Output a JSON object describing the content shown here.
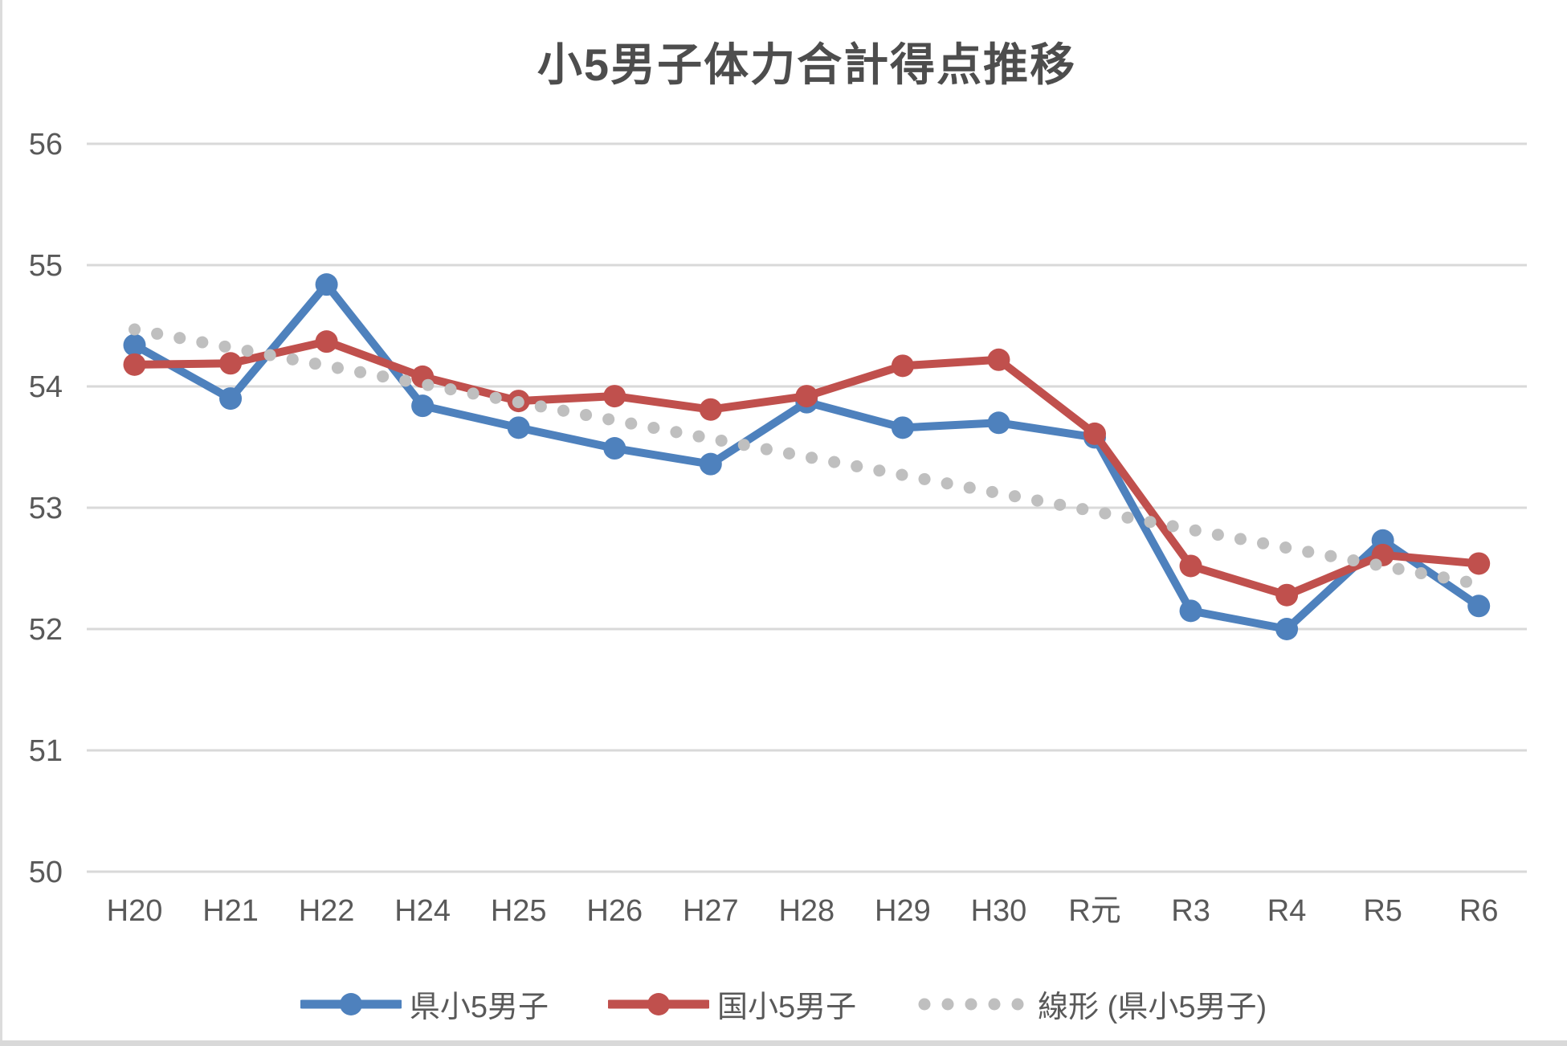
{
  "chart_title": "小5男子体力合計得点推移",
  "chart_data": {
    "type": "line",
    "title": "小5男子体力合計得点推移",
    "categories": [
      "H20",
      "H21",
      "H22",
      "H24",
      "H25",
      "H26",
      "H27",
      "H28",
      "H29",
      "H30",
      "R元",
      "R3",
      "R4",
      "R5",
      "R6"
    ],
    "series": [
      {
        "name": "県小5男子",
        "color": "#4E81BD",
        "style": "solid-with-markers",
        "values": [
          54.34,
          53.9,
          54.84,
          53.84,
          53.66,
          53.49,
          53.36,
          53.87,
          53.66,
          53.7,
          53.58,
          52.15,
          52.0,
          52.73,
          52.19
        ]
      },
      {
        "name": "国小5男子",
        "color": "#C0504D",
        "style": "solid-with-markers",
        "values": [
          54.18,
          54.19,
          54.37,
          54.08,
          53.88,
          53.92,
          53.81,
          53.92,
          54.17,
          54.22,
          53.61,
          52.52,
          52.28,
          52.61,
          52.54
        ]
      },
      {
        "name": "線形 (県小5男子)",
        "color": "#BFBFBF",
        "style": "dotted-trendline",
        "values": [
          54.47,
          54.32,
          54.17,
          54.02,
          53.87,
          53.72,
          53.57,
          53.42,
          53.27,
          53.12,
          52.97,
          52.82,
          52.67,
          52.52,
          52.37
        ]
      }
    ],
    "xlabel": "",
    "ylabel": "",
    "ylim": [
      50,
      56
    ],
    "yticks": [
      50,
      51,
      52,
      53,
      54,
      55,
      56
    ],
    "grid": "horizontal",
    "legend_position": "bottom",
    "colors": {
      "gridline": "#D9D9D9",
      "tick_label": "#595959",
      "title": "#4d4d4d",
      "prefecture_series": "#4E81BD",
      "national_series": "#C0504D",
      "trendline": "#BFBFBF"
    }
  }
}
